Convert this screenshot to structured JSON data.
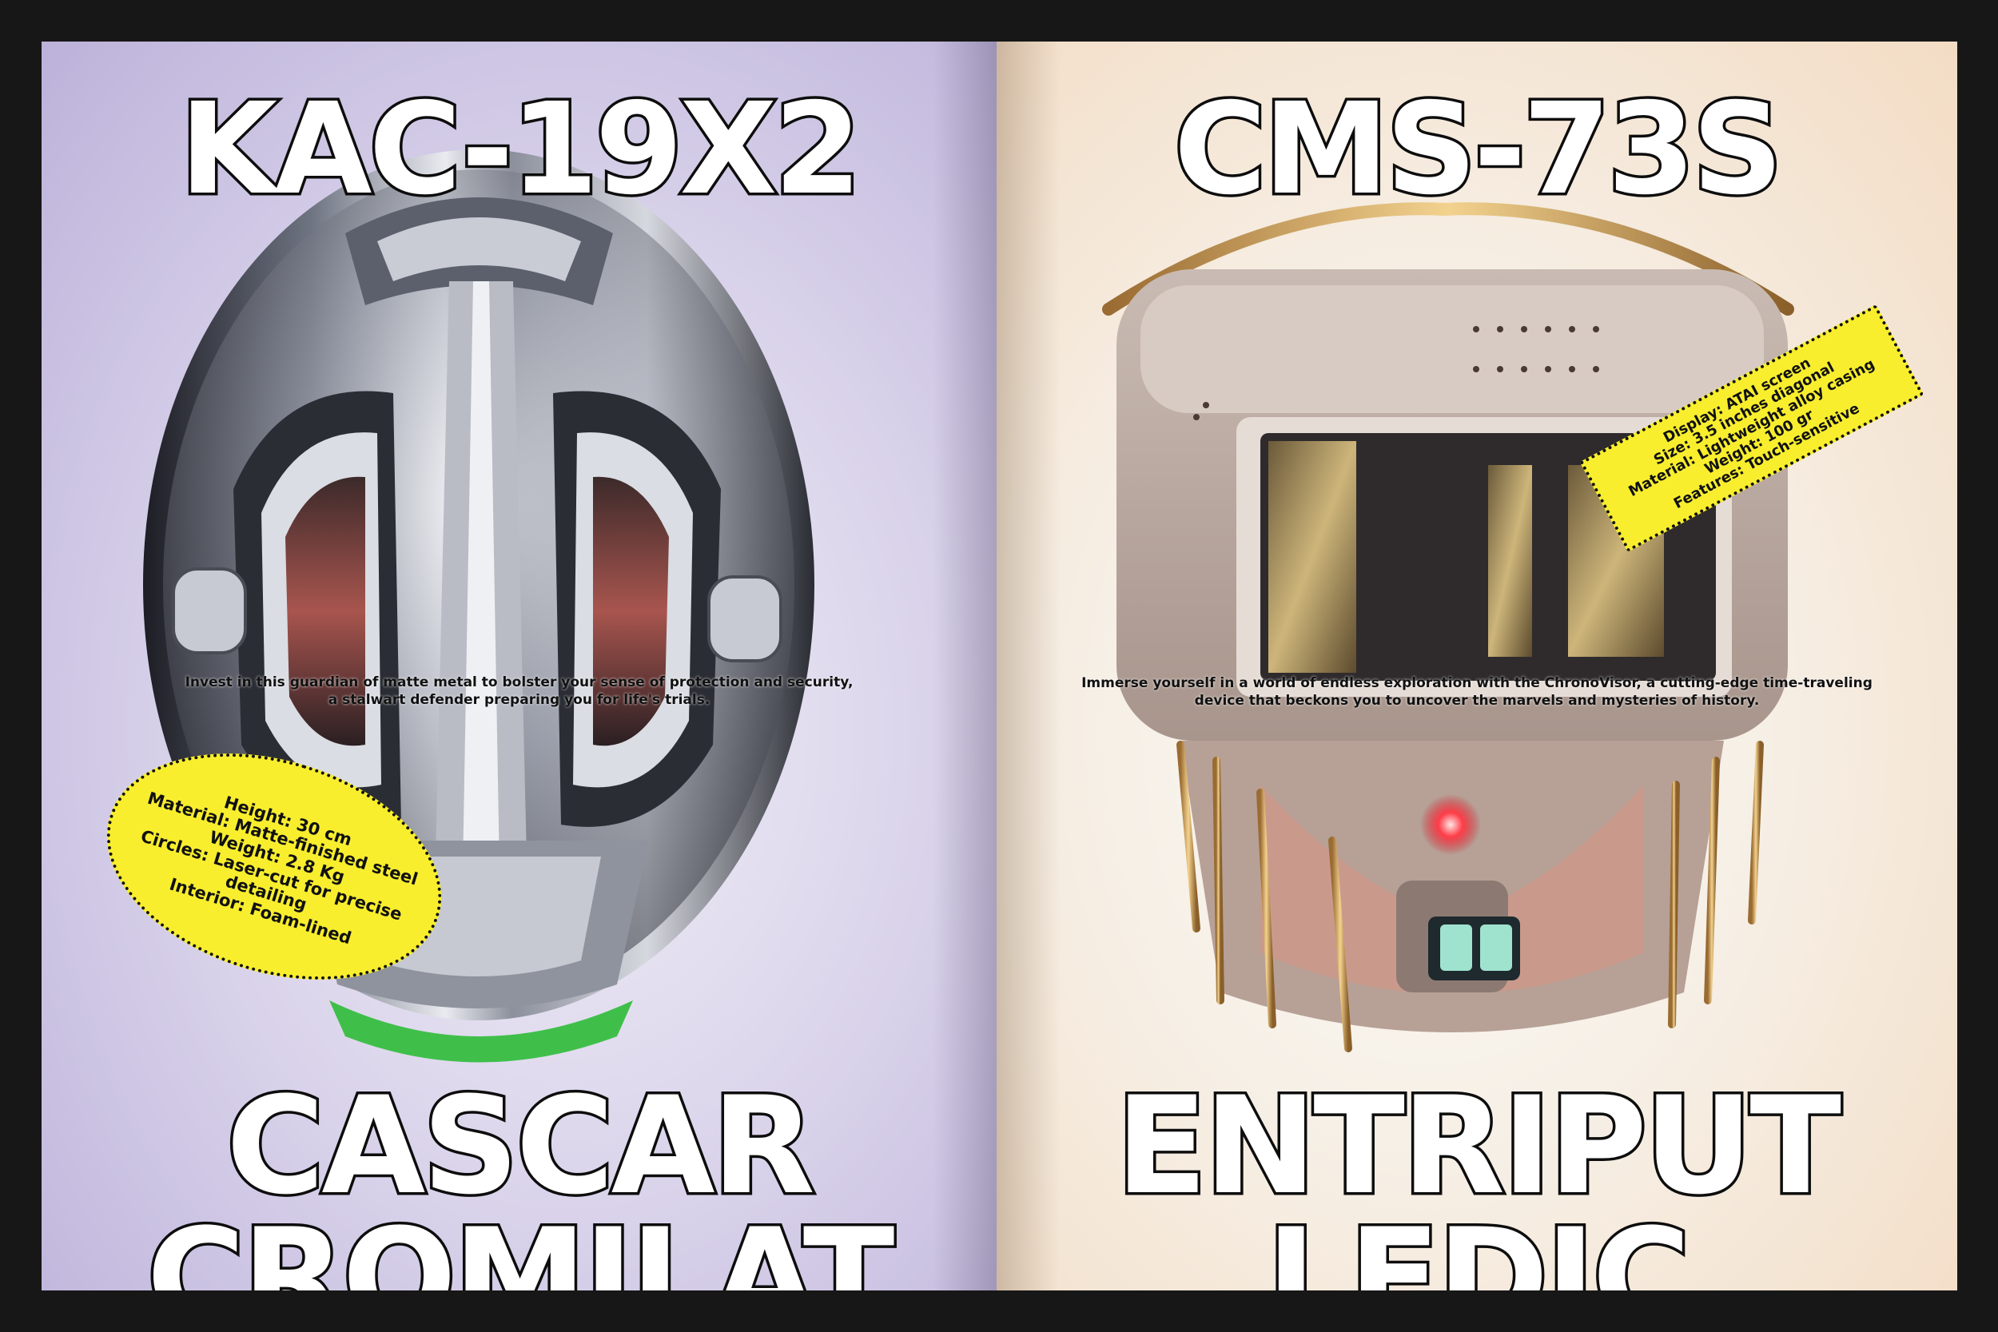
{
  "left_page": {
    "code": "KAC-19X2",
    "name_line1": "CASCAR",
    "name_line2": "CROMILAT",
    "blurb_line1": "Invest in this guardian of matte metal to bolster your sense of protection and security,",
    "blurb_line2": "a stalwart defender preparing you for life's trials.",
    "specs": [
      "Height: 30 cm",
      "Material: Matte-finished steel",
      "Weight: 2.8 Kg",
      "Circles: Laser-cut for precise",
      "detailing",
      "Interior: Foam-lined"
    ],
    "background_color": "#d9d3ea",
    "sticker_color": "#f8ee2e"
  },
  "right_page": {
    "code": "CMS-73S",
    "name_line1": "ENTRIPUT",
    "name_line2": "LEDIC",
    "blurb_line1": "Immerse yourself in a world of endless exploration with the ChronoVisor, a cutting-edge time-traveling",
    "blurb_line2": "device that beckons you to uncover the marvels and mysteries of history.",
    "specs": [
      "Display: ATAI screen",
      "Size: 3.5 inches diagonal",
      "Material: Lightweight alloy casing",
      "Weight: 100 gr",
      "Features: Touch-sensitive"
    ],
    "background_color": "#f6ede2",
    "sticker_color": "#f8ee2e"
  }
}
